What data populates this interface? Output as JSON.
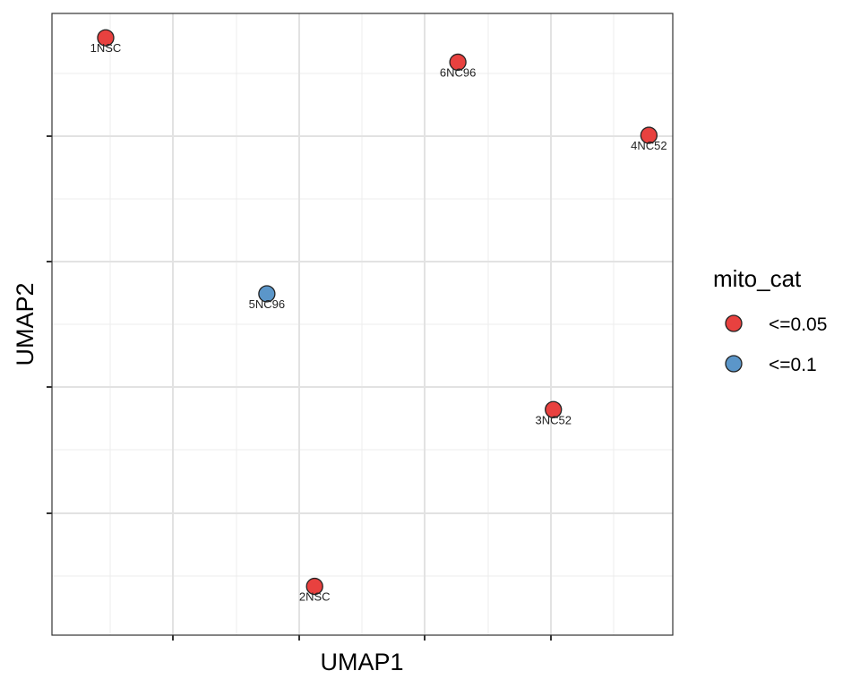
{
  "chart_data": {
    "type": "scatter",
    "xlabel": "UMAP1",
    "ylabel": "UMAP2",
    "grid": true,
    "x_tick_labels_shown": false,
    "y_tick_labels_shown": false,
    "legend": {
      "title": "mito_cat",
      "placement": "right",
      "entries": [
        {
          "label": "<=0.05",
          "color": "#E8413F"
        },
        {
          "label": "<=0.1",
          "color": "#5B96C9"
        }
      ]
    },
    "points": [
      {
        "label": "1NSC",
        "x": 0.4,
        "y": 9.4,
        "category": "<=0.05"
      },
      {
        "label": "6NC96",
        "x": 6.3,
        "y": 9.0,
        "category": "<=0.05"
      },
      {
        "label": "4NC52",
        "x": 9.5,
        "y": 7.8,
        "category": "<=0.05"
      },
      {
        "label": "5NC96",
        "x": 3.1,
        "y": 5.2,
        "category": "<=0.1"
      },
      {
        "label": "3NC52",
        "x": 7.9,
        "y": 3.3,
        "category": "<=0.05"
      },
      {
        "label": "2NSC",
        "x": 3.9,
        "y": 0.4,
        "category": "<=0.05"
      }
    ]
  }
}
